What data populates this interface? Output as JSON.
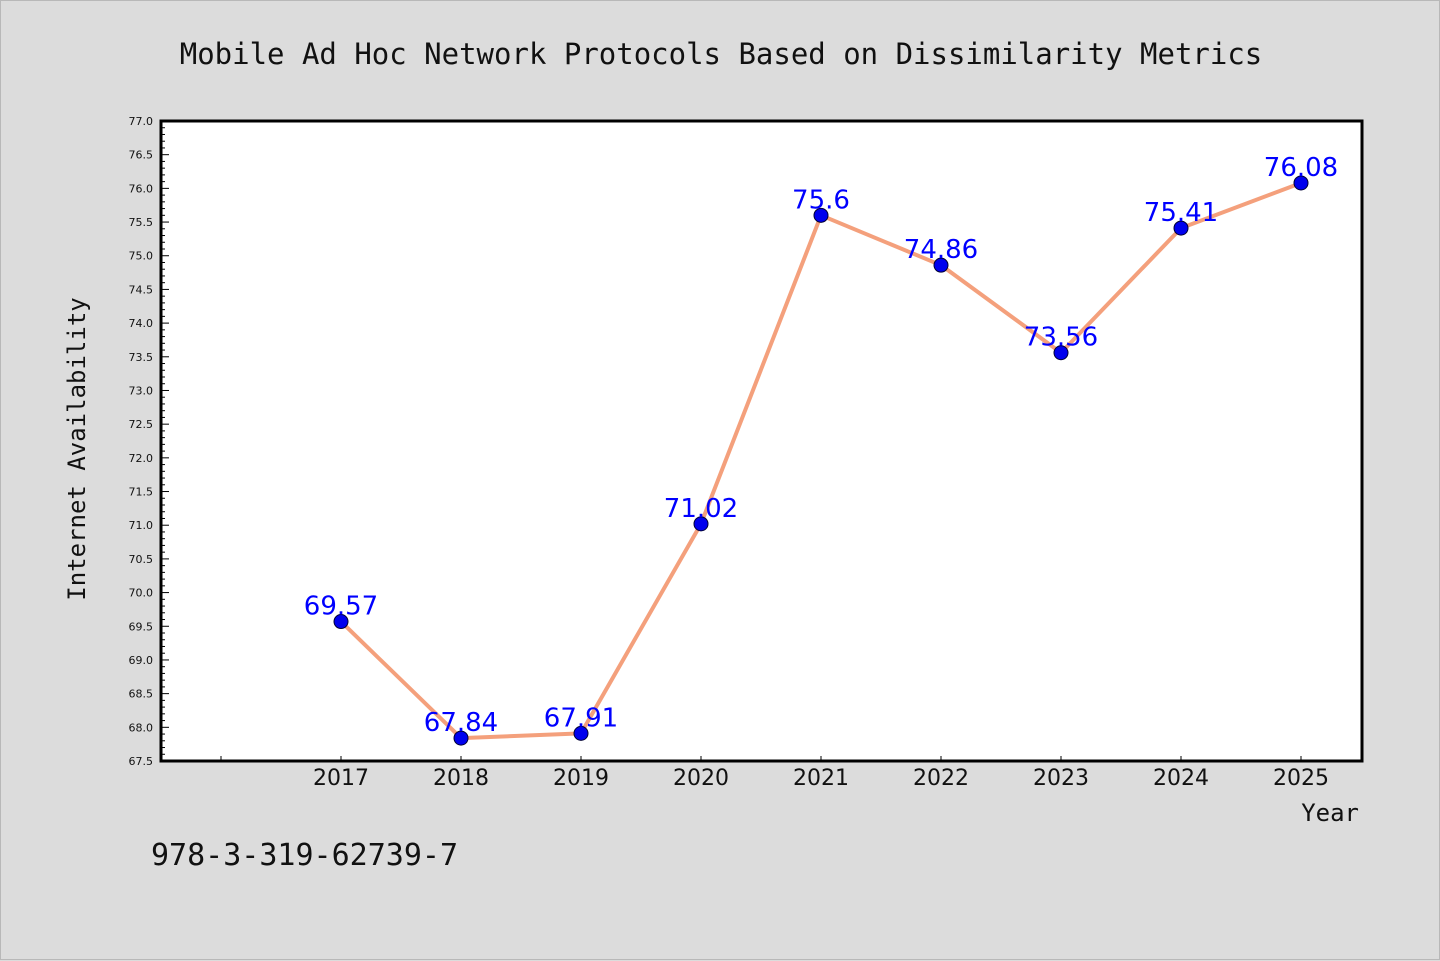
{
  "chart_data": {
    "type": "line",
    "title": "Mobile Ad Hoc Network Protocols Based on Dissimilarity Metrics",
    "xlabel": "Year",
    "ylabel": "Internet Availability",
    "categories": [
      "2017",
      "2018",
      "2019",
      "2020",
      "2021",
      "2022",
      "2023",
      "2024",
      "2025"
    ],
    "series": [
      {
        "values": [
          69.57,
          67.84,
          67.91,
          71.02,
          75.6,
          74.86,
          73.56,
          75.41,
          76.08
        ],
        "data_labels": [
          "69.57",
          "67.84",
          "67.91",
          "71.02",
          "75.6",
          "74.86",
          "73.56",
          "75.41",
          "76.08"
        ],
        "line_color": "#f4a07c",
        "marker_color": "#0000ee"
      }
    ],
    "ylim": [
      67.5,
      77.0
    ],
    "yticks": [
      "67.5",
      "68.0",
      "68.5",
      "69.0",
      "69.5",
      "70.0",
      "70.5",
      "71.0",
      "71.5",
      "72.0",
      "72.5",
      "73.0",
      "73.5",
      "74.0",
      "74.5",
      "75.0",
      "75.5",
      "76.0",
      "76.5",
      "77.0"
    ],
    "grid": false,
    "legend": "none"
  },
  "footer": {
    "isbn": "978-3-319-62739-7"
  }
}
